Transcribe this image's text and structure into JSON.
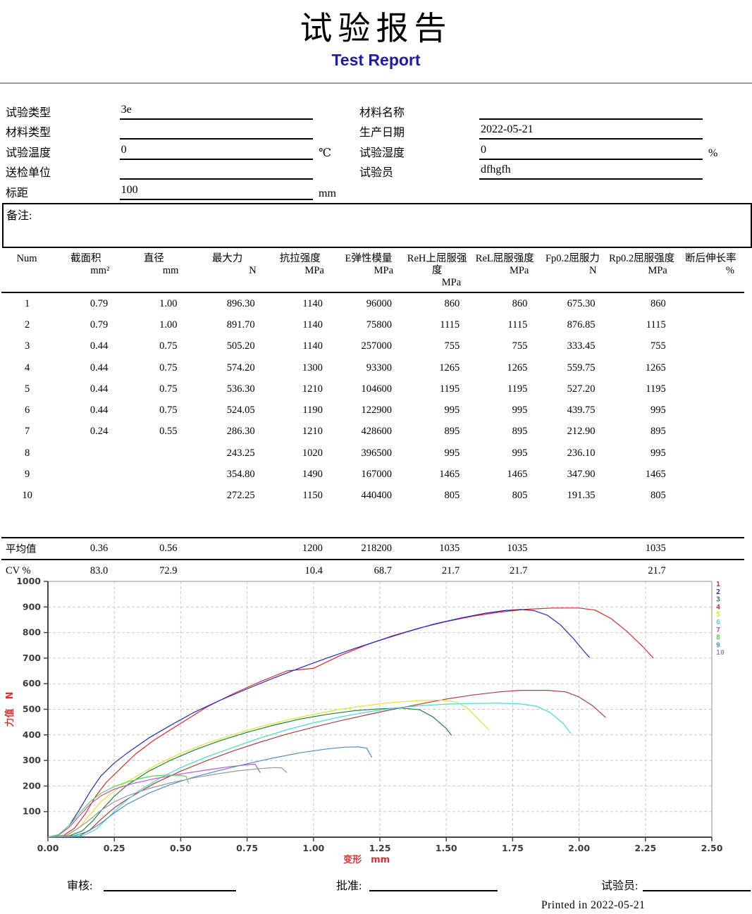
{
  "title": {
    "zh": "试验报告",
    "en": "Test Report"
  },
  "form": {
    "left": [
      {
        "label": "试验类型",
        "value": "3e",
        "unit": ""
      },
      {
        "label": "材料类型",
        "value": "",
        "unit": ""
      },
      {
        "label": "试验温度",
        "value": "0",
        "unit": "℃"
      },
      {
        "label": "送检单位",
        "value": "",
        "unit": ""
      },
      {
        "label": "标距",
        "value": "100",
        "unit": "mm"
      }
    ],
    "right": [
      {
        "label": "材料名称",
        "value": "",
        "unit": ""
      },
      {
        "label": "生产日期",
        "value": "2022-05-21",
        "unit": ""
      },
      {
        "label": "试验湿度",
        "value": "0",
        "unit": "%"
      },
      {
        "label": "试验员",
        "value": "dfhgfh",
        "unit": ""
      }
    ]
  },
  "remarks_label": "备注:",
  "table": {
    "headers": [
      {
        "title": "Num",
        "unit": ""
      },
      {
        "title": "截面积",
        "unit": "mm²"
      },
      {
        "title": "直径",
        "unit": "mm"
      },
      {
        "title": "最大力",
        "unit": "N"
      },
      {
        "title": "抗拉强度",
        "unit": "MPa"
      },
      {
        "title": "E弹性模量",
        "unit": "MPa"
      },
      {
        "title": "ReH上屈服强度",
        "unit": "MPa"
      },
      {
        "title": "ReL屈服强度",
        "unit": "MPa"
      },
      {
        "title": "Fp0.2屈服力",
        "unit": "N"
      },
      {
        "title": "Rp0.2屈服强度",
        "unit": "MPa"
      },
      {
        "title": "断后伸长率",
        "unit": "%"
      }
    ],
    "rows": [
      [
        "1",
        "0.79",
        "1.00",
        "896.30",
        "1140",
        "96000",
        "860",
        "860",
        "675.30",
        "860",
        ""
      ],
      [
        "2",
        "0.79",
        "1.00",
        "891.70",
        "1140",
        "75800",
        "1115",
        "1115",
        "876.85",
        "1115",
        ""
      ],
      [
        "3",
        "0.44",
        "0.75",
        "505.20",
        "1140",
        "257000",
        "755",
        "755",
        "333.45",
        "755",
        ""
      ],
      [
        "4",
        "0.44",
        "0.75",
        "574.20",
        "1300",
        "93300",
        "1265",
        "1265",
        "559.75",
        "1265",
        ""
      ],
      [
        "5",
        "0.44",
        "0.75",
        "536.30",
        "1210",
        "104600",
        "1195",
        "1195",
        "527.20",
        "1195",
        ""
      ],
      [
        "6",
        "0.44",
        "0.75",
        "524.05",
        "1190",
        "122900",
        "995",
        "995",
        "439.75",
        "995",
        ""
      ],
      [
        "7",
        "0.24",
        "0.55",
        "286.30",
        "1210",
        "428600",
        "895",
        "895",
        "212.90",
        "895",
        ""
      ],
      [
        "8",
        "",
        "",
        "243.25",
        "1020",
        "396500",
        "995",
        "995",
        "236.10",
        "995",
        ""
      ],
      [
        "9",
        "",
        "",
        "354.80",
        "1490",
        "167000",
        "1465",
        "1465",
        "347.90",
        "1465",
        ""
      ],
      [
        "10",
        "",
        "",
        "272.25",
        "1150",
        "440400",
        "805",
        "805",
        "191.35",
        "805",
        ""
      ]
    ],
    "average": [
      "平均值",
      "0.36",
      "0.56",
      "",
      "1200",
      "218200",
      "1035",
      "1035",
      "",
      "1035",
      ""
    ],
    "cv": [
      "CV %",
      "83.0",
      "72.9",
      "",
      "10.4",
      "68.7",
      "21.7",
      "21.7",
      "",
      "21.7",
      ""
    ]
  },
  "chart_data": {
    "type": "line",
    "xlabel": "变形",
    "x_unit": "mm",
    "ylabel": "力值",
    "y_unit": "N",
    "xlim": [
      0,
      2.5
    ],
    "ylim": [
      0,
      1000
    ],
    "grid": true,
    "legend_position": "right",
    "axis_label_color": "#e03030",
    "xticks": [
      "0.00",
      "0.25",
      "0.50",
      "0.75",
      "1.00",
      "1.25",
      "1.50",
      "1.75",
      "2.00",
      "2.25",
      "2.50"
    ],
    "yticks": [
      100,
      200,
      300,
      400,
      500,
      600,
      700,
      800,
      900,
      1000
    ],
    "series": [
      {
        "name": "1",
        "color": "#d92c2c",
        "points": [
          [
            0,
            0
          ],
          [
            0.06,
            8
          ],
          [
            0.1,
            35
          ],
          [
            0.14,
            90
          ],
          [
            0.18,
            160
          ],
          [
            0.22,
            215
          ],
          [
            0.27,
            265
          ],
          [
            0.33,
            325
          ],
          [
            0.4,
            380
          ],
          [
            0.5,
            445
          ],
          [
            0.6,
            510
          ],
          [
            0.7,
            562
          ],
          [
            0.8,
            608
          ],
          [
            0.9,
            650
          ],
          [
            1.0,
            660
          ],
          [
            1.1,
            710
          ],
          [
            1.2,
            752
          ],
          [
            1.3,
            788
          ],
          [
            1.4,
            818
          ],
          [
            1.5,
            843
          ],
          [
            1.6,
            864
          ],
          [
            1.7,
            880
          ],
          [
            1.8,
            891
          ],
          [
            1.9,
            896
          ],
          [
            2.0,
            896
          ],
          [
            2.06,
            888
          ],
          [
            2.12,
            855
          ],
          [
            2.18,
            805
          ],
          [
            2.24,
            745
          ],
          [
            2.28,
            700
          ]
        ]
      },
      {
        "name": "2",
        "color": "#2828c8",
        "points": [
          [
            0,
            0
          ],
          [
            0.04,
            10
          ],
          [
            0.08,
            45
          ],
          [
            0.12,
            110
          ],
          [
            0.16,
            180
          ],
          [
            0.2,
            240
          ],
          [
            0.25,
            290
          ],
          [
            0.3,
            330
          ],
          [
            0.38,
            388
          ],
          [
            0.46,
            436
          ],
          [
            0.55,
            488
          ],
          [
            0.65,
            536
          ],
          [
            0.75,
            580
          ],
          [
            0.85,
            622
          ],
          [
            0.95,
            662
          ],
          [
            1.05,
            700
          ],
          [
            1.15,
            736
          ],
          [
            1.25,
            770
          ],
          [
            1.35,
            802
          ],
          [
            1.45,
            832
          ],
          [
            1.55,
            856
          ],
          [
            1.65,
            876
          ],
          [
            1.72,
            886
          ],
          [
            1.78,
            890
          ],
          [
            1.83,
            886
          ],
          [
            1.88,
            868
          ],
          [
            1.93,
            830
          ],
          [
            1.98,
            775
          ],
          [
            2.02,
            725
          ],
          [
            2.04,
            702
          ]
        ]
      },
      {
        "name": "3",
        "color": "#1f8040",
        "points": [
          [
            0,
            0
          ],
          [
            0.08,
            5
          ],
          [
            0.13,
            25
          ],
          [
            0.17,
            65
          ],
          [
            0.21,
            115
          ],
          [
            0.25,
            160
          ],
          [
            0.3,
            205
          ],
          [
            0.38,
            258
          ],
          [
            0.46,
            300
          ],
          [
            0.55,
            340
          ],
          [
            0.65,
            378
          ],
          [
            0.75,
            410
          ],
          [
            0.85,
            438
          ],
          [
            0.95,
            462
          ],
          [
            1.05,
            480
          ],
          [
            1.15,
            494
          ],
          [
            1.25,
            502
          ],
          [
            1.33,
            505
          ],
          [
            1.4,
            498
          ],
          [
            1.45,
            470
          ],
          [
            1.5,
            425
          ],
          [
            1.52,
            398
          ]
        ]
      },
      {
        "name": "4",
        "color": "#aa4040",
        "points": [
          [
            0,
            0
          ],
          [
            0.12,
            5
          ],
          [
            0.16,
            30
          ],
          [
            0.2,
            70
          ],
          [
            0.25,
            115
          ],
          [
            0.3,
            150
          ],
          [
            0.4,
            210
          ],
          [
            0.5,
            258
          ],
          [
            0.6,
            300
          ],
          [
            0.7,
            338
          ],
          [
            0.8,
            372
          ],
          [
            0.9,
            403
          ],
          [
            1.0,
            430
          ],
          [
            1.1,
            455
          ],
          [
            1.2,
            478
          ],
          [
            1.3,
            500
          ],
          [
            1.4,
            520
          ],
          [
            1.5,
            540
          ],
          [
            1.6,
            556
          ],
          [
            1.7,
            568
          ],
          [
            1.78,
            574
          ],
          [
            1.88,
            574
          ],
          [
            1.95,
            568
          ],
          [
            2.0,
            548
          ],
          [
            2.05,
            515
          ],
          [
            2.1,
            468
          ]
        ]
      },
      {
        "name": "5",
        "color": "#e2e22a",
        "points": [
          [
            0,
            0
          ],
          [
            0.08,
            10
          ],
          [
            0.12,
            40
          ],
          [
            0.16,
            90
          ],
          [
            0.2,
            140
          ],
          [
            0.25,
            180
          ],
          [
            0.3,
            218
          ],
          [
            0.4,
            278
          ],
          [
            0.5,
            328
          ],
          [
            0.6,
            368
          ],
          [
            0.7,
            402
          ],
          [
            0.8,
            432
          ],
          [
            0.9,
            458
          ],
          [
            1.0,
            480
          ],
          [
            1.1,
            500
          ],
          [
            1.2,
            515
          ],
          [
            1.3,
            527
          ],
          [
            1.4,
            534
          ],
          [
            1.48,
            536
          ],
          [
            1.54,
            528
          ],
          [
            1.58,
            505
          ],
          [
            1.62,
            462
          ],
          [
            1.66,
            420
          ]
        ]
      },
      {
        "name": "6",
        "color": "#48d6d6",
        "points": [
          [
            0,
            0
          ],
          [
            0.13,
            4
          ],
          [
            0.18,
            30
          ],
          [
            0.23,
            80
          ],
          [
            0.28,
            130
          ],
          [
            0.34,
            180
          ],
          [
            0.42,
            230
          ],
          [
            0.5,
            272
          ],
          [
            0.6,
            315
          ],
          [
            0.7,
            352
          ],
          [
            0.8,
            388
          ],
          [
            0.9,
            420
          ],
          [
            1.0,
            447
          ],
          [
            1.1,
            470
          ],
          [
            1.2,
            489
          ],
          [
            1.3,
            504
          ],
          [
            1.4,
            514
          ],
          [
            1.5,
            520
          ],
          [
            1.6,
            523
          ],
          [
            1.7,
            524
          ],
          [
            1.78,
            521
          ],
          [
            1.84,
            512
          ],
          [
            1.89,
            488
          ],
          [
            1.94,
            445
          ],
          [
            1.97,
            405
          ]
        ]
      },
      {
        "name": "7",
        "color": "#c44fd0",
        "points": [
          [
            0,
            0
          ],
          [
            0.04,
            8
          ],
          [
            0.08,
            38
          ],
          [
            0.12,
            85
          ],
          [
            0.16,
            130
          ],
          [
            0.2,
            162
          ],
          [
            0.25,
            188
          ],
          [
            0.32,
            210
          ],
          [
            0.4,
            228
          ],
          [
            0.5,
            247
          ],
          [
            0.6,
            263
          ],
          [
            0.68,
            275
          ],
          [
            0.74,
            282
          ],
          [
            0.78,
            286
          ],
          [
            0.79,
            268
          ],
          [
            0.8,
            252
          ]
        ]
      },
      {
        "name": "8",
        "color": "#52d852",
        "points": [
          [
            0,
            0
          ],
          [
            0.04,
            10
          ],
          [
            0.08,
            45
          ],
          [
            0.12,
            95
          ],
          [
            0.16,
            140
          ],
          [
            0.2,
            172
          ],
          [
            0.25,
            198
          ],
          [
            0.3,
            216
          ],
          [
            0.35,
            230
          ],
          [
            0.4,
            240
          ],
          [
            0.45,
            243
          ],
          [
            0.5,
            241
          ],
          [
            0.52,
            238
          ],
          [
            0.53,
            210
          ]
        ]
      },
      {
        "name": "9",
        "color": "#4f8fbf",
        "points": [
          [
            0,
            0
          ],
          [
            0.1,
            6
          ],
          [
            0.15,
            22
          ],
          [
            0.2,
            55
          ],
          [
            0.25,
            95
          ],
          [
            0.3,
            130
          ],
          [
            0.38,
            172
          ],
          [
            0.46,
            205
          ],
          [
            0.55,
            235
          ],
          [
            0.65,
            262
          ],
          [
            0.75,
            287
          ],
          [
            0.85,
            310
          ],
          [
            0.95,
            330
          ],
          [
            1.05,
            345
          ],
          [
            1.12,
            352
          ],
          [
            1.17,
            353
          ],
          [
            1.2,
            348
          ],
          [
            1.22,
            312
          ]
        ]
      },
      {
        "name": "10",
        "color": "#9a9a9a",
        "points": [
          [
            0,
            0
          ],
          [
            0.07,
            8
          ],
          [
            0.11,
            32
          ],
          [
            0.15,
            62
          ],
          [
            0.2,
            105
          ],
          [
            0.25,
            138
          ],
          [
            0.3,
            162
          ],
          [
            0.38,
            190
          ],
          [
            0.46,
            212
          ],
          [
            0.55,
            232
          ],
          [
            0.64,
            248
          ],
          [
            0.72,
            260
          ],
          [
            0.8,
            268
          ],
          [
            0.85,
            272
          ],
          [
            0.88,
            271
          ],
          [
            0.9,
            252
          ]
        ]
      }
    ]
  },
  "footer": {
    "review": "审核:",
    "approve": "批准:",
    "tester": "试验员:",
    "printed": "Printed in 2022-05-21"
  }
}
